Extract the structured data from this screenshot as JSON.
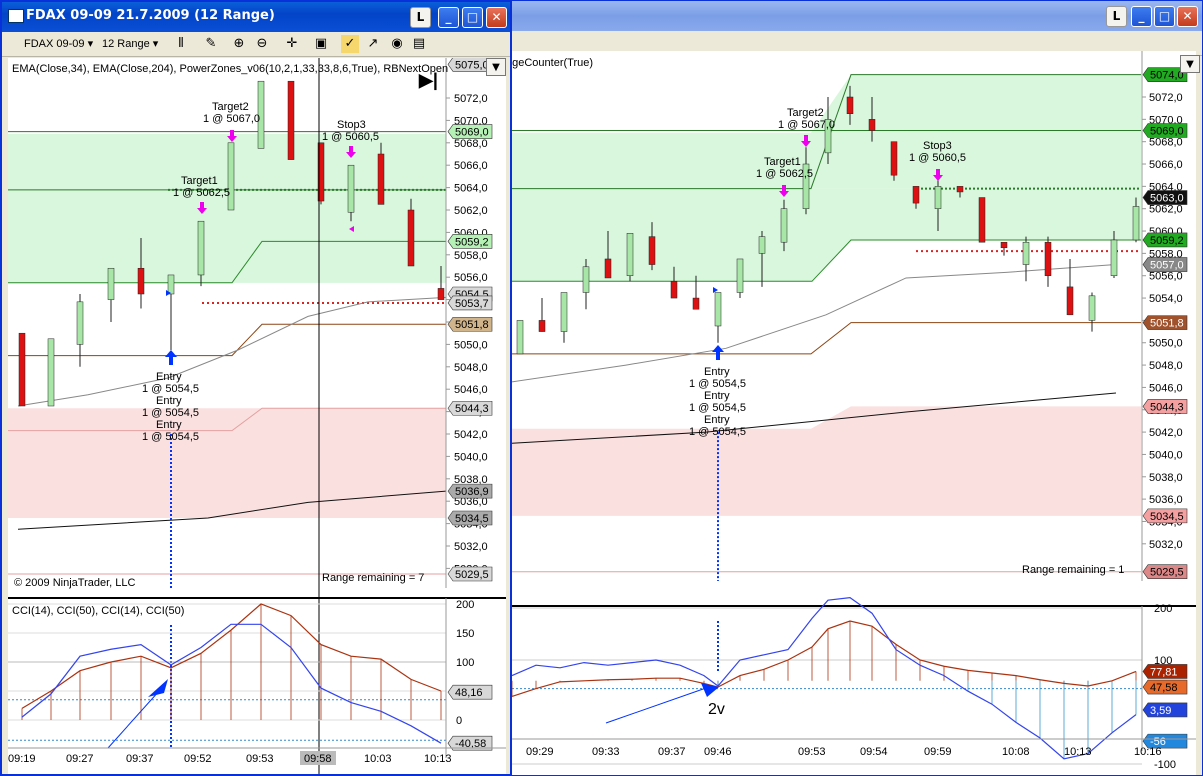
{
  "win_left": {
    "title": "FDAX 09-09  21.7.2009 (12 Range)",
    "instrument": "FDAX 09-09",
    "interval": "12 Range",
    "indicator_line": "EMA(Close,34), EMA(Close,204), PowerZones_v06(10,2,1,33,33,8,6,True), RBNextOpen",
    "copyright": "© 2009 NinjaTrader, LLC",
    "range_remaining": "Range remaining = 7",
    "cci_label": "CCI(14), CCI(50), CCI(14), CCI(50)",
    "price_ticks": [
      "5072,0",
      "5070,0",
      "5068,0",
      "5066,0",
      "5064,0",
      "5062,0",
      "5060,0",
      "5058,0",
      "5056,0",
      "5054,0",
      "5052,0",
      "5050,0",
      "5048,0",
      "5046,0",
      "5044,0",
      "5042,0",
      "5040,0",
      "5038,0",
      "5036,0",
      "5034,0",
      "5032,0",
      "5030,0"
    ],
    "price_badges": [
      "5075,0",
      "5069,0",
      "5059,2",
      "5054,5",
      "5053,7",
      "5051,8",
      "5044,3",
      "5036,9",
      "5034,5",
      "5029,5"
    ],
    "cci_ticks": [
      "200",
      "150",
      "100",
      "50",
      "0"
    ],
    "cci_badges": [
      "48,16",
      "-40,58"
    ],
    "time_labels": [
      "09:19",
      "09:27",
      "09:37",
      "09:52",
      "09:53",
      "09:58",
      "10:03",
      "10:13"
    ],
    "orders": {
      "target2": "Target2",
      "target2_qty": "1 @ 5067,0",
      "target1": "Target1",
      "target1_qty": "1 @ 5062,5",
      "stop3": "Stop3",
      "stop3_qty": "1 @ 5060,5",
      "entry": "Entry",
      "entry_qty": "1 @ 5054,5"
    }
  },
  "win_right": {
    "indicator_line": "ngeCounter(True)",
    "range_remaining": "Range remaining = 1",
    "price_ticks": [
      "5072,0",
      "5070,0",
      "5068,0",
      "5066,0",
      "5064,0",
      "5062,0",
      "5060,0",
      "5058,0",
      "5056,0",
      "5054,0",
      "5052,0",
      "5050,0",
      "5048,0",
      "5046,0",
      "5044,0",
      "5042,0",
      "5040,0",
      "5038,0",
      "5036,0",
      "5034,0",
      "5032,0"
    ],
    "price_badges": [
      "5074,0",
      "5069,0",
      "5063,0",
      "5059,2",
      "5057,0",
      "5051,8",
      "5044,3",
      "5034,5",
      "5029,5"
    ],
    "cci_ticks": [
      "200",
      "100",
      "-100"
    ],
    "cci_badges": [
      "77,81",
      "47,58",
      "3,59",
      "-56"
    ],
    "time_labels": [
      "09:29",
      "09:33",
      "09:37",
      "09:46",
      "09:53",
      "09:54",
      "09:59",
      "10:08",
      "10:13",
      "10:16"
    ],
    "annotation": "2v",
    "orders": {
      "target2": "Target2",
      "target2_qty": "1 @ 5067,0",
      "target1": "Target1",
      "target1_qty": "1 @ 5062,5",
      "stop3": "Stop3",
      "stop3_qty": "1 @ 5060,5",
      "entry": "Entry",
      "entry_qty": "1 @ 5054,5"
    }
  },
  "buttons": {
    "restore": "L",
    "minimize": "_",
    "maximize": "□",
    "close": "✕",
    "dropdown": "▼"
  },
  "colors": {
    "zone_green": "#d9f7dc",
    "zone_red": "#fbe0e0",
    "bull": "#a8e6a8",
    "bear": "#dd1111",
    "cci_fast": "#3344ee",
    "cci_slow": "#aa3311",
    "order_magenta": "#ee00ee",
    "entry_blue": "#0033ff"
  }
}
